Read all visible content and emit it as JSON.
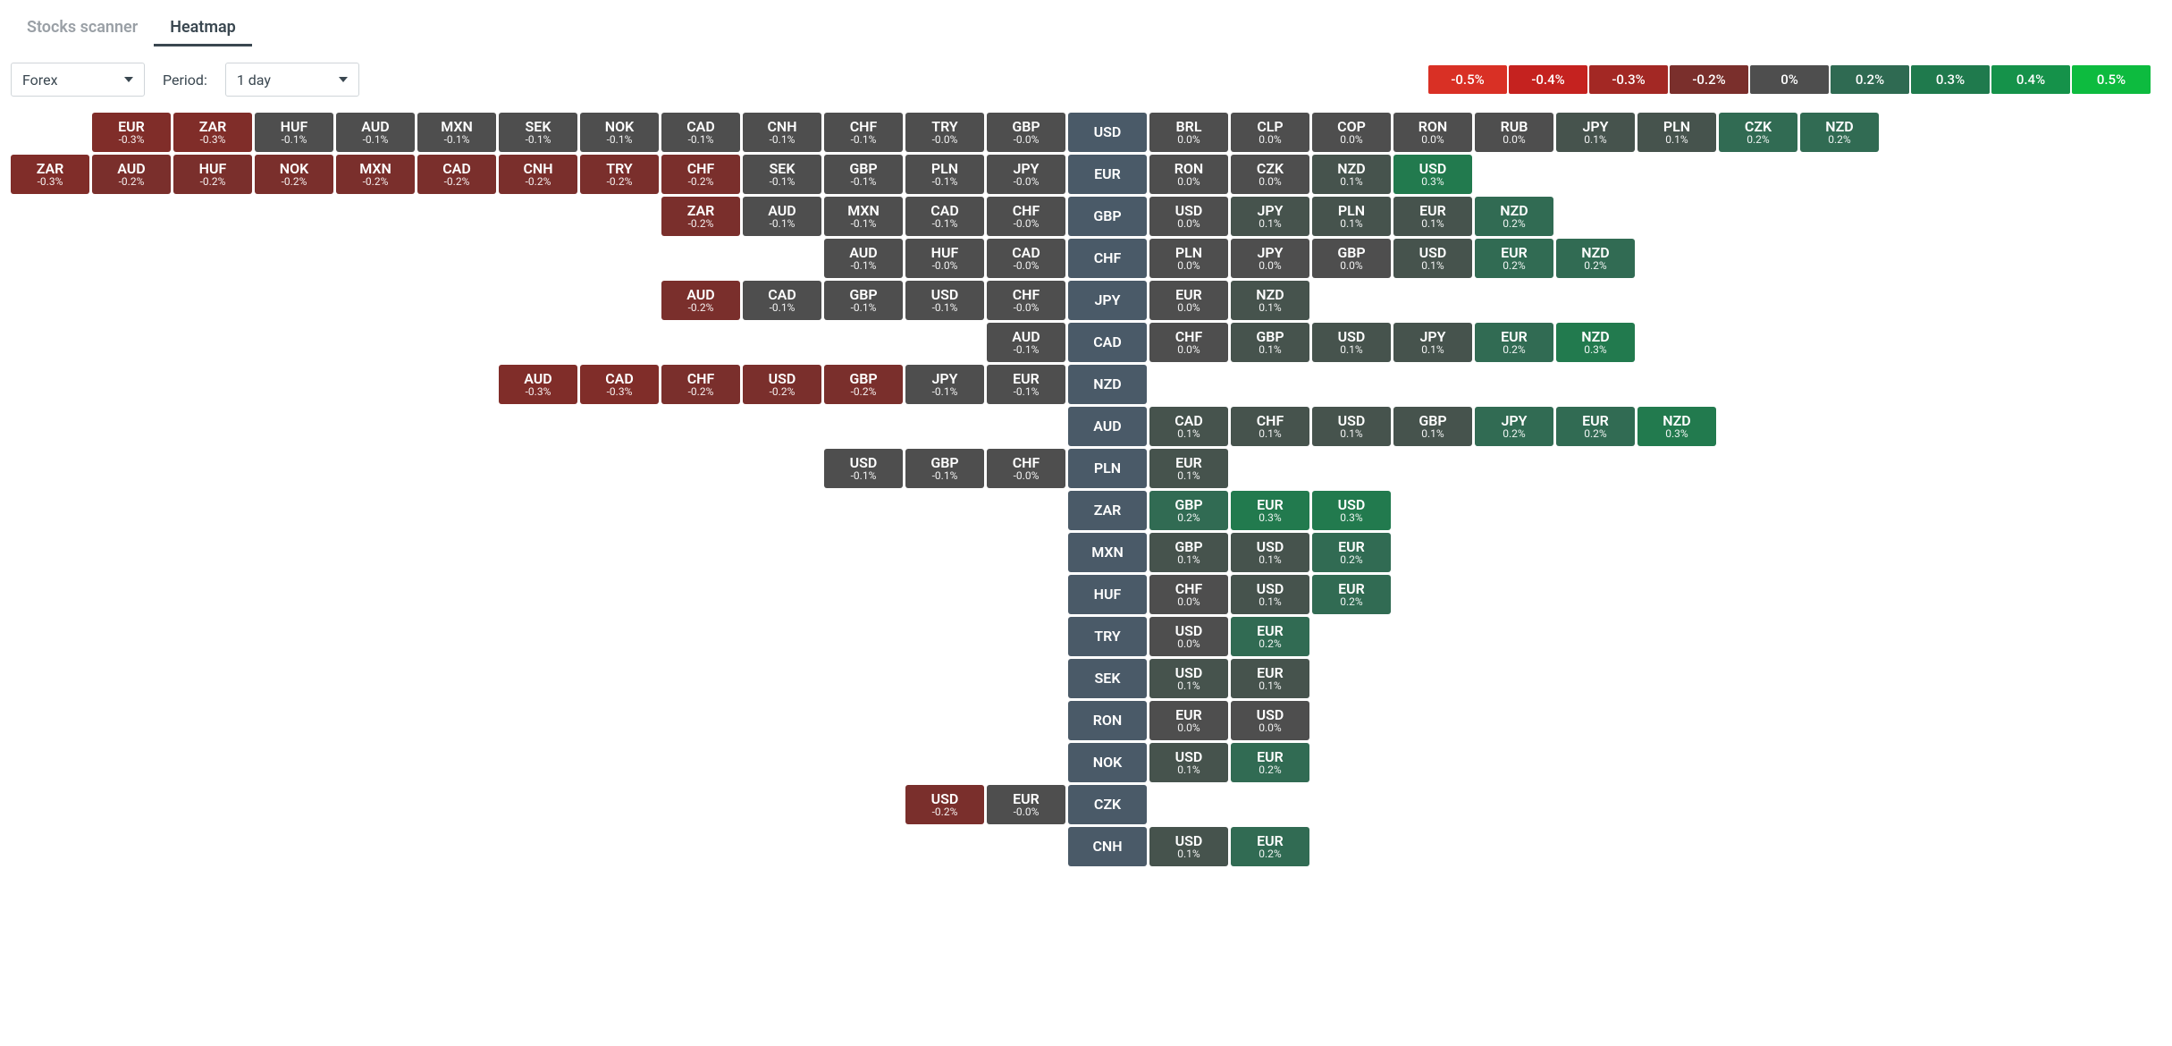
{
  "tabs": [
    {
      "id": "scanner",
      "label": "Stocks scanner",
      "active": false
    },
    {
      "id": "heatmap",
      "label": "Heatmap",
      "active": true
    }
  ],
  "controls": {
    "market_select": "Forex",
    "period_label": "Period:",
    "period_select": "1 day"
  },
  "color_scale": {
    "neg5": "#d93025",
    "neg4": "#c5221f",
    "neg3": "#a32824",
    "neg2": "#7a2f2c",
    "zero": "#4e4e4e",
    "pos2": "#2f6a52",
    "pos3": "#1f7a4d",
    "pos4": "#15924a",
    "pos5": "#0dbb3f"
  },
  "legend": [
    {
      "label": "-0.5%",
      "color": "#d93025"
    },
    {
      "label": "-0.4%",
      "color": "#c5221f"
    },
    {
      "label": "-0.3%",
      "color": "#a32824"
    },
    {
      "label": "-0.2%",
      "color": "#7a2f2c"
    },
    {
      "label": "0%",
      "color": "#4e4e4e"
    },
    {
      "label": "0.2%",
      "color": "#2f6a52"
    },
    {
      "label": "0.3%",
      "color": "#1f7a4d"
    },
    {
      "label": "0.4%",
      "color": "#15924a"
    },
    {
      "label": "0.5%",
      "color": "#0dbb3f"
    }
  ],
  "cell_colors": {
    "-0.3": "#802d29",
    "-0.2": "#7a2f2c",
    "-0.1": "#4e4e4e",
    "-0.0": "#4e4e4e",
    "0.0": "#4e4e4e",
    "0.1": "#46534d",
    "0.2": "#316b53",
    "0.3": "#227a4e"
  },
  "base_color": "#4a5a68",
  "base_col": 13,
  "rows": [
    {
      "base": "USD",
      "neg": [
        {
          "sym": "EUR",
          "val": "-0.3%"
        },
        {
          "sym": "ZAR",
          "val": "-0.3%"
        },
        {
          "sym": "HUF",
          "val": "-0.1%"
        },
        {
          "sym": "AUD",
          "val": "-0.1%"
        },
        {
          "sym": "MXN",
          "val": "-0.1%"
        },
        {
          "sym": "SEK",
          "val": "-0.1%"
        },
        {
          "sym": "NOK",
          "val": "-0.1%"
        },
        {
          "sym": "CAD",
          "val": "-0.1%"
        },
        {
          "sym": "CNH",
          "val": "-0.1%"
        },
        {
          "sym": "CHF",
          "val": "-0.1%"
        },
        {
          "sym": "TRY",
          "val": "-0.0%"
        },
        {
          "sym": "GBP",
          "val": "-0.0%"
        }
      ],
      "pos": [
        {
          "sym": "BRL",
          "val": "0.0%"
        },
        {
          "sym": "CLP",
          "val": "0.0%"
        },
        {
          "sym": "COP",
          "val": "0.0%"
        },
        {
          "sym": "RON",
          "val": "0.0%"
        },
        {
          "sym": "RUB",
          "val": "0.0%"
        },
        {
          "sym": "JPY",
          "val": "0.1%"
        },
        {
          "sym": "PLN",
          "val": "0.1%"
        },
        {
          "sym": "CZK",
          "val": "0.2%"
        },
        {
          "sym": "NZD",
          "val": "0.2%"
        }
      ]
    },
    {
      "base": "EUR",
      "neg": [
        {
          "sym": "ZAR",
          "val": "-0.3%"
        },
        {
          "sym": "AUD",
          "val": "-0.2%"
        },
        {
          "sym": "HUF",
          "val": "-0.2%"
        },
        {
          "sym": "NOK",
          "val": "-0.2%"
        },
        {
          "sym": "MXN",
          "val": "-0.2%"
        },
        {
          "sym": "CAD",
          "val": "-0.2%"
        },
        {
          "sym": "CNH",
          "val": "-0.2%"
        },
        {
          "sym": "TRY",
          "val": "-0.2%"
        },
        {
          "sym": "CHF",
          "val": "-0.2%"
        },
        {
          "sym": "SEK",
          "val": "-0.1%"
        },
        {
          "sym": "GBP",
          "val": "-0.1%"
        },
        {
          "sym": "PLN",
          "val": "-0.1%"
        },
        {
          "sym": "JPY",
          "val": "-0.0%"
        }
      ],
      "pos": [
        {
          "sym": "RON",
          "val": "0.0%"
        },
        {
          "sym": "CZK",
          "val": "0.0%"
        },
        {
          "sym": "NZD",
          "val": "0.1%"
        },
        {
          "sym": "USD",
          "val": "0.3%"
        }
      ]
    },
    {
      "base": "GBP",
      "neg": [
        {
          "sym": "ZAR",
          "val": "-0.2%"
        },
        {
          "sym": "AUD",
          "val": "-0.1%"
        },
        {
          "sym": "MXN",
          "val": "-0.1%"
        },
        {
          "sym": "CAD",
          "val": "-0.1%"
        },
        {
          "sym": "CHF",
          "val": "-0.0%"
        }
      ],
      "pos": [
        {
          "sym": "USD",
          "val": "0.0%"
        },
        {
          "sym": "JPY",
          "val": "0.1%"
        },
        {
          "sym": "PLN",
          "val": "0.1%"
        },
        {
          "sym": "EUR",
          "val": "0.1%"
        },
        {
          "sym": "NZD",
          "val": "0.2%"
        }
      ]
    },
    {
      "base": "CHF",
      "neg": [
        {
          "sym": "AUD",
          "val": "-0.1%"
        },
        {
          "sym": "HUF",
          "val": "-0.0%"
        },
        {
          "sym": "CAD",
          "val": "-0.0%"
        }
      ],
      "pos": [
        {
          "sym": "PLN",
          "val": "0.0%"
        },
        {
          "sym": "JPY",
          "val": "0.0%"
        },
        {
          "sym": "GBP",
          "val": "0.0%"
        },
        {
          "sym": "USD",
          "val": "0.1%"
        },
        {
          "sym": "EUR",
          "val": "0.2%"
        },
        {
          "sym": "NZD",
          "val": "0.2%"
        }
      ]
    },
    {
      "base": "JPY",
      "neg": [
        {
          "sym": "AUD",
          "val": "-0.2%"
        },
        {
          "sym": "CAD",
          "val": "-0.1%"
        },
        {
          "sym": "GBP",
          "val": "-0.1%"
        },
        {
          "sym": "USD",
          "val": "-0.1%"
        },
        {
          "sym": "CHF",
          "val": "-0.0%"
        }
      ],
      "pos": [
        {
          "sym": "EUR",
          "val": "0.0%"
        },
        {
          "sym": "NZD",
          "val": "0.1%"
        }
      ]
    },
    {
      "base": "CAD",
      "neg": [
        {
          "sym": "AUD",
          "val": "-0.1%"
        }
      ],
      "pos": [
        {
          "sym": "CHF",
          "val": "0.0%"
        },
        {
          "sym": "GBP",
          "val": "0.1%"
        },
        {
          "sym": "USD",
          "val": "0.1%"
        },
        {
          "sym": "JPY",
          "val": "0.1%"
        },
        {
          "sym": "EUR",
          "val": "0.2%"
        },
        {
          "sym": "NZD",
          "val": "0.3%"
        }
      ]
    },
    {
      "base": "NZD",
      "neg": [
        {
          "sym": "AUD",
          "val": "-0.3%"
        },
        {
          "sym": "CAD",
          "val": "-0.3%"
        },
        {
          "sym": "CHF",
          "val": "-0.2%"
        },
        {
          "sym": "USD",
          "val": "-0.2%"
        },
        {
          "sym": "GBP",
          "val": "-0.2%"
        },
        {
          "sym": "JPY",
          "val": "-0.1%"
        },
        {
          "sym": "EUR",
          "val": "-0.1%"
        }
      ],
      "pos": []
    },
    {
      "base": "AUD",
      "neg": [],
      "pos": [
        {
          "sym": "CAD",
          "val": "0.1%"
        },
        {
          "sym": "CHF",
          "val": "0.1%"
        },
        {
          "sym": "USD",
          "val": "0.1%"
        },
        {
          "sym": "GBP",
          "val": "0.1%"
        },
        {
          "sym": "JPY",
          "val": "0.2%"
        },
        {
          "sym": "EUR",
          "val": "0.2%"
        },
        {
          "sym": "NZD",
          "val": "0.3%"
        }
      ]
    },
    {
      "base": "PLN",
      "neg": [
        {
          "sym": "USD",
          "val": "-0.1%"
        },
        {
          "sym": "GBP",
          "val": "-0.1%"
        },
        {
          "sym": "CHF",
          "val": "-0.0%"
        }
      ],
      "pos": [
        {
          "sym": "EUR",
          "val": "0.1%"
        }
      ]
    },
    {
      "base": "ZAR",
      "neg": [],
      "pos": [
        {
          "sym": "GBP",
          "val": "0.2%"
        },
        {
          "sym": "EUR",
          "val": "0.3%"
        },
        {
          "sym": "USD",
          "val": "0.3%"
        }
      ]
    },
    {
      "base": "MXN",
      "neg": [],
      "pos": [
        {
          "sym": "GBP",
          "val": "0.1%"
        },
        {
          "sym": "USD",
          "val": "0.1%"
        },
        {
          "sym": "EUR",
          "val": "0.2%"
        }
      ]
    },
    {
      "base": "HUF",
      "neg": [],
      "pos": [
        {
          "sym": "CHF",
          "val": "0.0%"
        },
        {
          "sym": "USD",
          "val": "0.1%"
        },
        {
          "sym": "EUR",
          "val": "0.2%"
        }
      ]
    },
    {
      "base": "TRY",
      "neg": [],
      "pos": [
        {
          "sym": "USD",
          "val": "0.0%"
        },
        {
          "sym": "EUR",
          "val": "0.2%"
        }
      ]
    },
    {
      "base": "SEK",
      "neg": [],
      "pos": [
        {
          "sym": "USD",
          "val": "0.1%"
        },
        {
          "sym": "EUR",
          "val": "0.1%"
        }
      ]
    },
    {
      "base": "RON",
      "neg": [],
      "pos": [
        {
          "sym": "EUR",
          "val": "0.0%"
        },
        {
          "sym": "USD",
          "val": "0.0%"
        }
      ]
    },
    {
      "base": "NOK",
      "neg": [],
      "pos": [
        {
          "sym": "USD",
          "val": "0.1%"
        },
        {
          "sym": "EUR",
          "val": "0.2%"
        }
      ]
    },
    {
      "base": "CZK",
      "neg": [
        {
          "sym": "USD",
          "val": "-0.2%"
        },
        {
          "sym": "EUR",
          "val": "-0.0%"
        }
      ],
      "pos": []
    },
    {
      "base": "CNH",
      "neg": [],
      "pos": [
        {
          "sym": "USD",
          "val": "0.1%"
        },
        {
          "sym": "EUR",
          "val": "0.2%"
        }
      ]
    }
  ]
}
